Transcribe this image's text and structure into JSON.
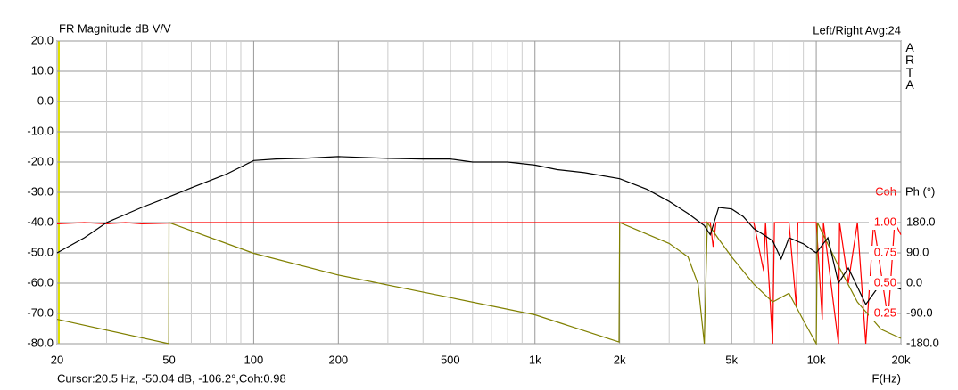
{
  "chart_data": {
    "type": "line",
    "title": "FR Magnitude dB V/V",
    "header_right": "Left/Right  Avg:24",
    "logo": "ARTA",
    "cursor_text": "Cursor:20.5 Hz, -50.04 dB, -106.2°,Coh:0.98",
    "xlabel": "F(Hz)",
    "y2label": "Ph (°)",
    "y3label": "Coh",
    "xscale": "log",
    "grid": true,
    "xlim": [
      20,
      20000
    ],
    "xticks": [
      20,
      50,
      100,
      200,
      500,
      {
        "value": 1000,
        "label": "1k"
      },
      {
        "value": 2000,
        "label": "2k"
      },
      {
        "value": 5000,
        "label": "5k"
      },
      {
        "value": 10000,
        "label": "10k"
      },
      {
        "value": 20000,
        "label": "20k"
      }
    ],
    "xminor": [
      30,
      40,
      60,
      70,
      80,
      90,
      300,
      400,
      600,
      700,
      800,
      900,
      3000,
      4000,
      6000,
      7000,
      8000,
      9000
    ],
    "ylim": [
      -80,
      20
    ],
    "yticks": [
      {
        "value": 20,
        "label": "20.0"
      },
      {
        "value": 10,
        "label": "10.0"
      },
      {
        "value": 0,
        "label": "0.0"
      },
      {
        "value": -10,
        "label": "-10.0"
      },
      {
        "value": -20,
        "label": "-20.0"
      },
      {
        "value": -30,
        "label": "-30.0"
      },
      {
        "value": -40,
        "label": "-40.0"
      },
      {
        "value": -50,
        "label": "-50.0"
      },
      {
        "value": -60,
        "label": "-60.0"
      },
      {
        "value": -70,
        "label": "-70.0"
      },
      {
        "value": -80,
        "label": "-80.0"
      }
    ],
    "y2lim": [
      -180,
      180
    ],
    "y2ticks": [
      {
        "value": 180,
        "label": "180.0"
      },
      {
        "value": 90,
        "label": "90.0"
      },
      {
        "value": 0,
        "label": "0.0"
      },
      {
        "value": -90,
        "label": "-90.0"
      },
      {
        "value": -180,
        "label": "-180.0"
      }
    ],
    "y3lim": [
      0,
      1
    ],
    "y3ticks": [
      {
        "value": 1,
        "label": "1.00"
      },
      {
        "value": 0.75,
        "label": "0.75"
      },
      {
        "value": 0.5,
        "label": "0.50"
      },
      {
        "value": 0.25,
        "label": "0.25"
      }
    ],
    "series": [
      {
        "color": "#ff0000",
        "axis": "y3",
        "x": [
          20,
          25,
          30,
          35,
          40,
          60,
          100,
          1000,
          4000,
          4200,
          4300,
          4400,
          6000,
          6500,
          6600,
          7000,
          7100,
          8000,
          8500,
          8600,
          10000,
          10500,
          10600,
          12000,
          12100,
          13000,
          14000,
          15000,
          16000,
          18000,
          19000,
          20000
        ],
        "values": [
          0.99,
          1,
          0.99,
          1,
          0.99,
          1,
          1,
          1,
          1,
          1,
          0.8,
          1,
          1,
          0.6,
          1,
          0,
          1,
          1,
          0.3,
          1,
          1,
          0.2,
          1,
          0,
          1,
          0.5,
          1,
          0,
          1,
          0.2,
          1,
          0.9
        ]
      },
      {
        "color": "#808000",
        "axis": "y2",
        "x": [
          20,
          49.9,
          50,
          100,
          200,
          500,
          1000,
          1500,
          1990,
          2000,
          3000,
          3500,
          3800,
          4000,
          4100,
          4500,
          5000,
          6000,
          7000,
          8000,
          9000,
          10000,
          10100,
          12000,
          14000,
          17000,
          20000
        ],
        "values": [
          -107.5,
          -180,
          180,
          88.7,
          24,
          -43,
          -94,
          -142,
          -175,
          180,
          118,
          78,
          -3,
          -180,
          180,
          131,
          78,
          -3,
          -56,
          -30,
          -110,
          -180,
          180,
          51,
          -56,
          -137,
          -164
        ]
      },
      {
        "color": "#000000",
        "x": [
          20,
          25,
          30,
          40,
          50,
          60,
          80,
          100,
          120,
          150,
          200,
          300,
          400,
          500,
          600,
          700,
          800,
          1000,
          1200,
          1500,
          2000,
          2500,
          3000,
          3500,
          4000,
          4200,
          4500,
          5000,
          5500,
          6000,
          6500,
          7000,
          7500,
          8000,
          9000,
          10000,
          11000,
          12000,
          13000,
          15000,
          17000,
          20000
        ],
        "values": [
          -50,
          -45,
          -40,
          -35,
          -31.5,
          -28.5,
          -24,
          -19.5,
          -19,
          -18.8,
          -18.2,
          -18.8,
          -19,
          -19,
          -20,
          -20,
          -20,
          -21,
          -22.5,
          -23.5,
          -25.5,
          -29,
          -33,
          -37,
          -41,
          -44,
          -35,
          -35.5,
          -38,
          -42,
          -44,
          -46,
          -52,
          -45,
          -47,
          -50,
          -45,
          -60,
          -55,
          -67,
          -60,
          -62
        ]
      }
    ]
  }
}
